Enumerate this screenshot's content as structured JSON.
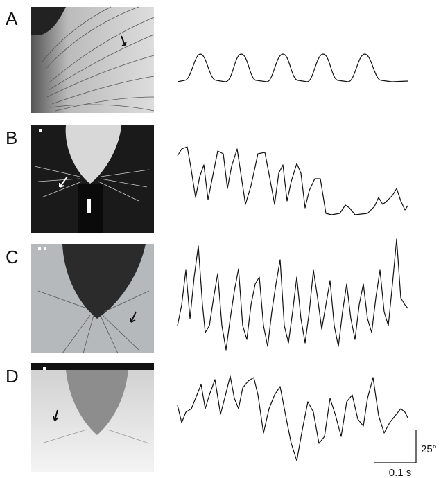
{
  "panels": [
    {
      "label": "A"
    },
    {
      "label": "B"
    },
    {
      "label": "C"
    },
    {
      "label": "D"
    }
  ],
  "scale_bar": {
    "vertical": "25°",
    "horizontal": "0.1 s"
  }
}
